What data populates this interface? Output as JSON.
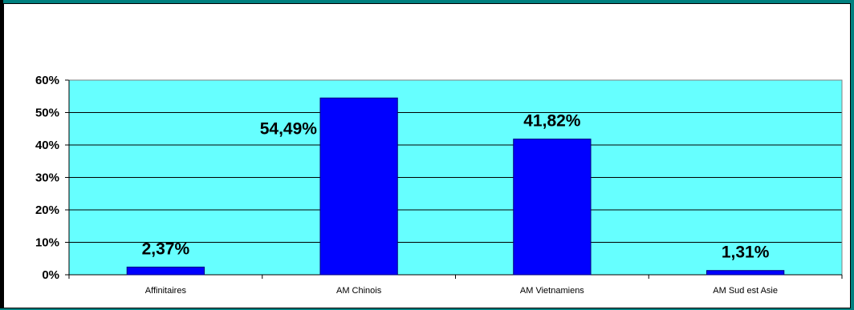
{
  "chart_data": {
    "type": "bar",
    "categories": [
      "Affinitaires",
      "AM Chinois",
      "AM Vietnamiens",
      "AM Sud est Asie"
    ],
    "values": [
      2.37,
      54.49,
      41.82,
      1.31
    ],
    "data_labels": [
      "2,37%",
      "54,49%",
      "41,82%",
      "1,31%"
    ],
    "ylim": [
      0,
      60
    ],
    "yticks": [
      0,
      10,
      20,
      30,
      40,
      50,
      60
    ],
    "ytick_labels": [
      "0%",
      "10%",
      "20%",
      "30%",
      "40%",
      "50%",
      "60%"
    ],
    "gridlines": true,
    "legend": "none",
    "colors": {
      "plot_background": "#66ffff",
      "bar_fill": "#0000ff",
      "bar_border": "#000080",
      "frame_border": "#008080"
    }
  }
}
